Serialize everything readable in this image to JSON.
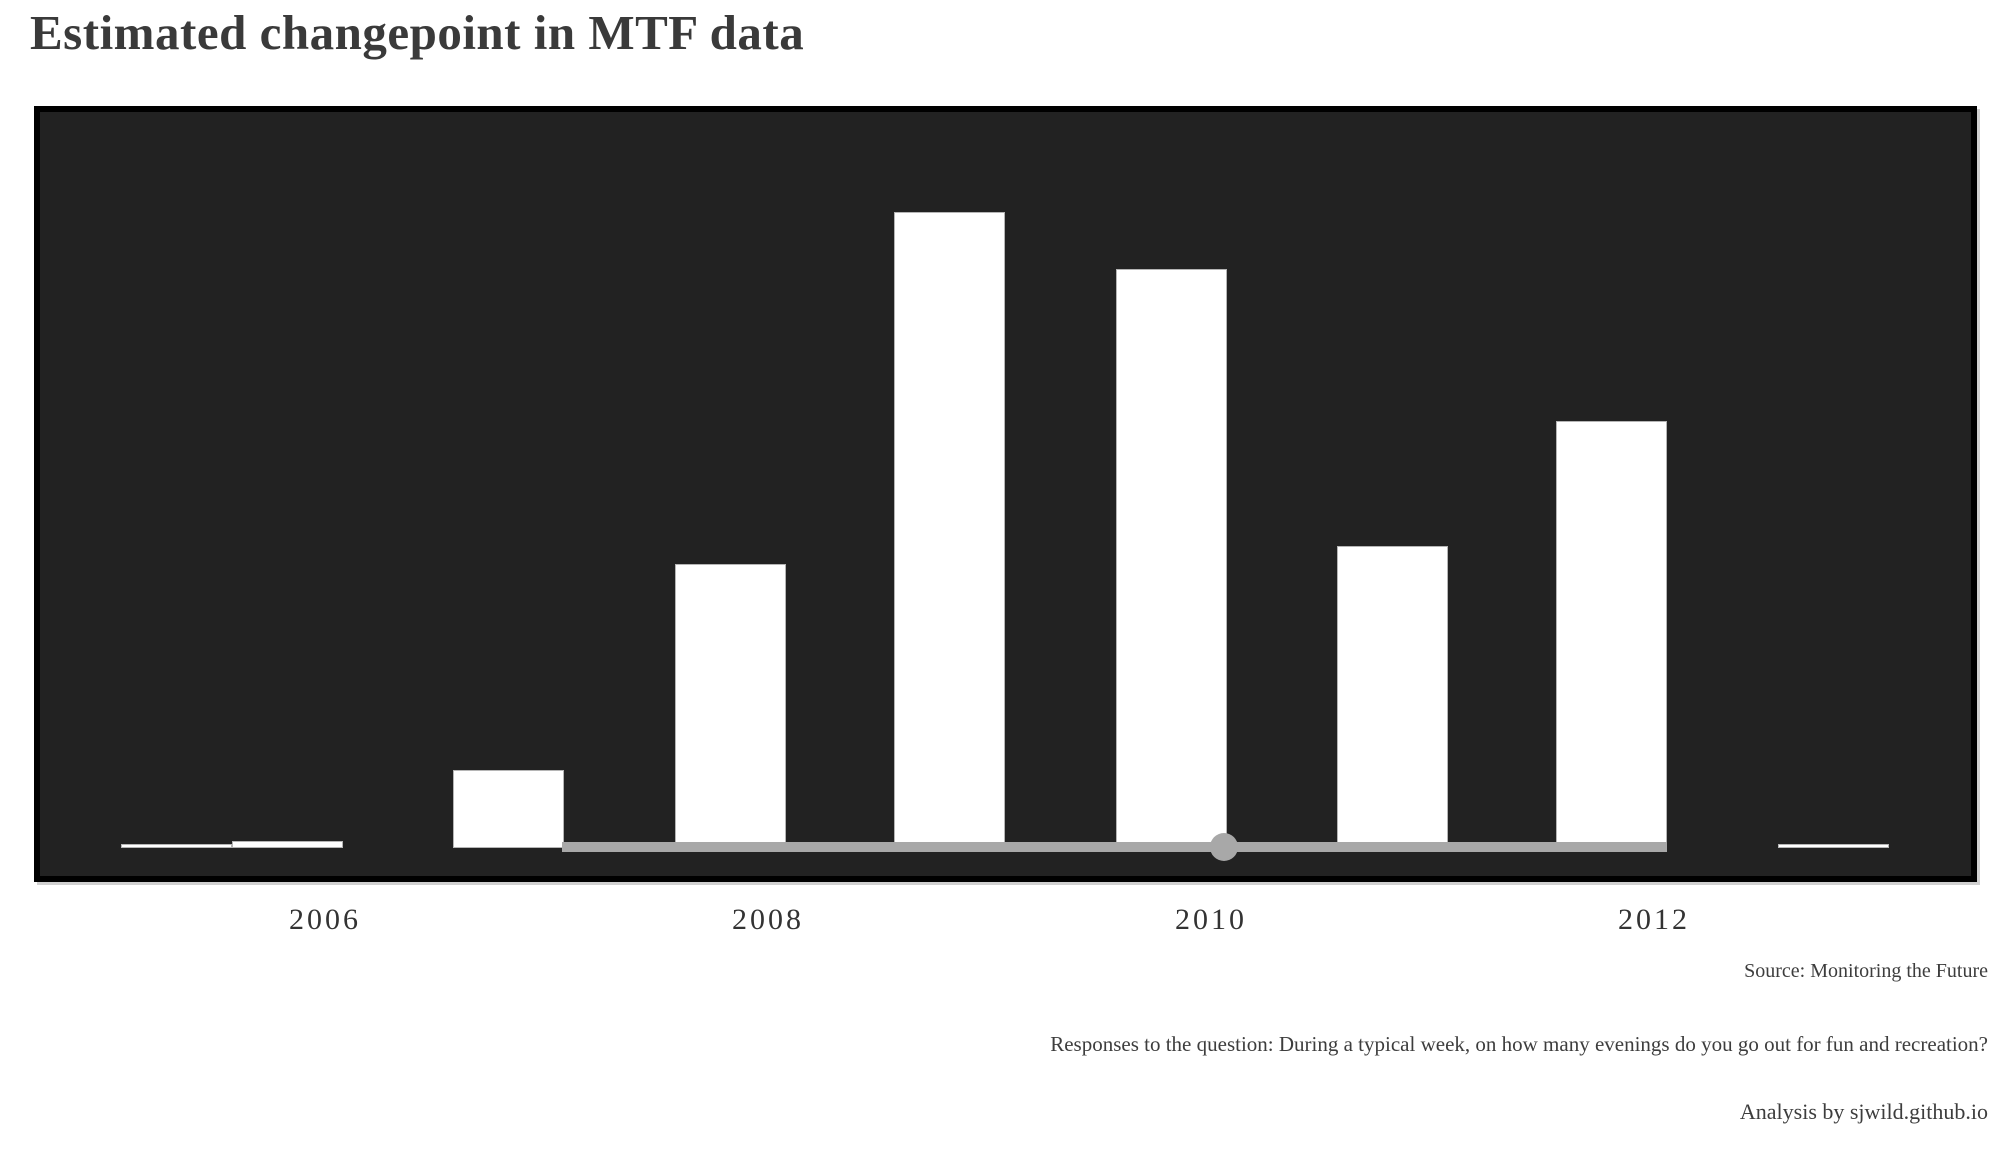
{
  "page": {
    "title": "Estimated changepoint in MTF data"
  },
  "captions": {
    "source": "Source: Monitoring the Future",
    "note": "Responses to the question: During a typical week, on how many evenings do you go out for fun and recreation?",
    "credit": "Analysis by sjwild.github.io"
  },
  "chart_data": {
    "type": "bar",
    "title": "Estimated changepoint in MTF data",
    "xlabel": "",
    "ylabel": "",
    "grid": false,
    "legend": false,
    "xlim": [
      2004.7,
      2013.4
    ],
    "ylim": [
      0,
      0.3
    ],
    "x_ticks": [
      {
        "year": 2006,
        "label": "2006"
      },
      {
        "year": 2008,
        "label": "2008"
      },
      {
        "year": 2010,
        "label": "2010"
      },
      {
        "year": 2012,
        "label": "2012"
      }
    ],
    "bars": [
      {
        "x": 2005.33,
        "p": 0.0017
      },
      {
        "x": 2005.83,
        "p": 0.003
      },
      {
        "x": 2006.83,
        "p": 0.0337
      },
      {
        "x": 2007.83,
        "p": 0.1222
      },
      {
        "x": 2008.82,
        "p": 0.2742
      },
      {
        "x": 2009.82,
        "p": 0.2496
      },
      {
        "x": 2010.82,
        "p": 0.13
      },
      {
        "x": 2011.81,
        "p": 0.184
      },
      {
        "x": 2012.81,
        "p": 0.0017
      }
    ],
    "interval": {
      "start": 2007.07,
      "end": 2012.06,
      "point": 2010.06
    },
    "colors": {
      "panel_bg": "#222222",
      "frame": "#000000",
      "bar_fill": "#ffffff",
      "bar_stroke": "#b5b5b5",
      "interval": "#a8a8a8",
      "text": "#3a3a3a"
    }
  }
}
